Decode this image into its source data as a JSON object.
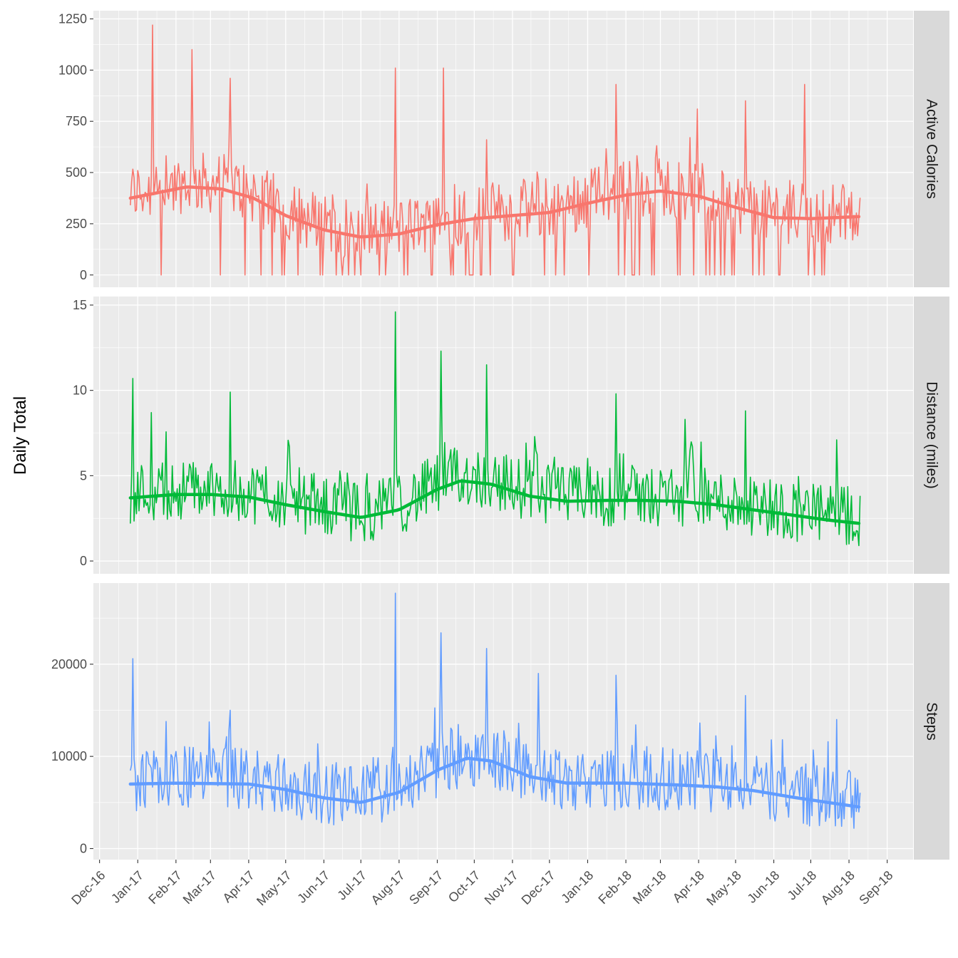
{
  "chart_data": {
    "type": "line",
    "ylabel": "Daily Total",
    "xlabel": "",
    "x_axis": {
      "type": "date",
      "range": [
        "2016-11-26",
        "2018-09-22"
      ],
      "ticks": [
        {
          "date": "2016-12-01",
          "label": "Dec-16"
        },
        {
          "date": "2017-01-01",
          "label": "Jan-17"
        },
        {
          "date": "2017-02-01",
          "label": "Feb-17"
        },
        {
          "date": "2017-03-01",
          "label": "Mar-17"
        },
        {
          "date": "2017-04-01",
          "label": "Apr-17"
        },
        {
          "date": "2017-05-01",
          "label": "May-17"
        },
        {
          "date": "2017-06-01",
          "label": "Jun-17"
        },
        {
          "date": "2017-07-01",
          "label": "Jul-17"
        },
        {
          "date": "2017-08-01",
          "label": "Aug-17"
        },
        {
          "date": "2017-09-01",
          "label": "Sep-17"
        },
        {
          "date": "2017-10-01",
          "label": "Oct-17"
        },
        {
          "date": "2017-11-01",
          "label": "Nov-17"
        },
        {
          "date": "2017-12-01",
          "label": "Dec-17"
        },
        {
          "date": "2018-01-01",
          "label": "Jan-18"
        },
        {
          "date": "2018-02-01",
          "label": "Feb-18"
        },
        {
          "date": "2018-03-01",
          "label": "Mar-18"
        },
        {
          "date": "2018-04-01",
          "label": "Apr-18"
        },
        {
          "date": "2018-05-01",
          "label": "May-18"
        },
        {
          "date": "2018-06-01",
          "label": "Jun-18"
        },
        {
          "date": "2018-07-01",
          "label": "Jul-18"
        },
        {
          "date": "2018-08-01",
          "label": "Aug-18"
        },
        {
          "date": "2018-09-01",
          "label": "Sep-18"
        }
      ]
    },
    "date_range_of_data": [
      "2016-12-26",
      "2018-08-10"
    ],
    "grid": true,
    "legend": "none",
    "facets": [
      {
        "name": "Active Calories",
        "color": "#F8766D",
        "ylim": [
          -60,
          1290
        ],
        "yticks": [
          {
            "v": 0,
            "label": "0"
          },
          {
            "v": 250,
            "label": "250"
          },
          {
            "v": 500,
            "label": "500"
          },
          {
            "v": 750,
            "label": "750"
          },
          {
            "v": 1000,
            "label": "1000"
          },
          {
            "v": 1250,
            "label": "1250"
          }
        ],
        "daily_approx": {
          "base": 380,
          "amplitude": 150,
          "zero_probability": 0.12,
          "peaks": [
            [
              "2017-01-13",
              1220
            ],
            [
              "2017-02-14",
              1100
            ],
            [
              "2017-03-17",
              960
            ],
            [
              "2017-07-29",
              1010
            ],
            [
              "2017-09-06",
              1010
            ],
            [
              "2017-10-11",
              660
            ],
            [
              "2018-01-24",
              930
            ],
            [
              "2018-03-31",
              810
            ],
            [
              "2018-05-09",
              850
            ],
            [
              "2018-06-26",
              930
            ]
          ]
        },
        "smooth": [
          [
            "2016-12-26",
            375
          ],
          [
            "2017-02-10",
            430
          ],
          [
            "2017-03-10",
            420
          ],
          [
            "2017-04-05",
            375
          ],
          [
            "2017-05-01",
            290
          ],
          [
            "2017-06-01",
            220
          ],
          [
            "2017-07-01",
            185
          ],
          [
            "2017-08-01",
            200
          ],
          [
            "2017-09-01",
            245
          ],
          [
            "2017-10-01",
            275
          ],
          [
            "2017-11-01",
            290
          ],
          [
            "2017-12-01",
            305
          ],
          [
            "2018-01-01",
            350
          ],
          [
            "2018-02-01",
            390
          ],
          [
            "2018-03-01",
            410
          ],
          [
            "2018-04-01",
            385
          ],
          [
            "2018-05-01",
            330
          ],
          [
            "2018-06-01",
            280
          ],
          [
            "2018-07-01",
            275
          ],
          [
            "2018-08-10",
            285
          ]
        ]
      },
      {
        "name": "Distance (miles)",
        "color": "#00BA38",
        "ylim": [
          -0.75,
          15.5
        ],
        "yticks": [
          {
            "v": 0,
            "label": "0"
          },
          {
            "v": 5,
            "label": "5"
          },
          {
            "v": 10,
            "label": "10"
          },
          {
            "v": 15,
            "label": "15"
          }
        ],
        "daily_approx": {
          "base": 3.6,
          "amplitude": 1.8,
          "zero_probability": 0,
          "peaks": [
            [
              "2016-12-28",
              10.7
            ],
            [
              "2017-01-12",
              8.7
            ],
            [
              "2017-03-17",
              9.9
            ],
            [
              "2017-07-29",
              14.6
            ],
            [
              "2017-09-04",
              12.3
            ],
            [
              "2017-10-11",
              11.5
            ],
            [
              "2018-01-24",
              9.8
            ],
            [
              "2018-03-21",
              8.3
            ],
            [
              "2018-05-09",
              8.8
            ],
            [
              "2018-07-22",
              7.1
            ]
          ]
        },
        "smooth": [
          [
            "2016-12-26",
            3.7
          ],
          [
            "2017-02-01",
            3.9
          ],
          [
            "2017-03-01",
            3.9
          ],
          [
            "2017-04-01",
            3.75
          ],
          [
            "2017-05-01",
            3.3
          ],
          [
            "2017-06-01",
            2.9
          ],
          [
            "2017-07-01",
            2.55
          ],
          [
            "2017-08-01",
            3.0
          ],
          [
            "2017-09-01",
            4.2
          ],
          [
            "2017-09-20",
            4.7
          ],
          [
            "2017-10-15",
            4.5
          ],
          [
            "2017-11-15",
            3.8
          ],
          [
            "2017-12-15",
            3.5
          ],
          [
            "2018-01-15",
            3.55
          ],
          [
            "2018-02-15",
            3.55
          ],
          [
            "2018-03-15",
            3.5
          ],
          [
            "2018-04-15",
            3.3
          ],
          [
            "2018-05-15",
            3.0
          ],
          [
            "2018-06-15",
            2.7
          ],
          [
            "2018-07-15",
            2.4
          ],
          [
            "2018-08-10",
            2.2
          ]
        ]
      },
      {
        "name": "Steps",
        "color": "#619CFF",
        "ylim": [
          -1200,
          28800
        ],
        "yticks": [
          {
            "v": 0,
            "label": "0"
          },
          {
            "v": 10000,
            "label": "10000"
          },
          {
            "v": 20000,
            "label": "20000"
          }
        ],
        "daily_approx": {
          "base": 6900,
          "amplitude": 3500,
          "zero_probability": 0,
          "peaks": [
            [
              "2016-12-28",
              20600
            ],
            [
              "2017-03-17",
              15000
            ],
            [
              "2017-07-29",
              27700
            ],
            [
              "2017-09-04",
              23400
            ],
            [
              "2017-10-11",
              21700
            ],
            [
              "2017-11-22",
              19000
            ],
            [
              "2018-01-24",
              18800
            ],
            [
              "2018-05-09",
              16600
            ],
            [
              "2018-07-22",
              14000
            ]
          ]
        },
        "smooth": [
          [
            "2016-12-26",
            7000
          ],
          [
            "2017-02-01",
            7100
          ],
          [
            "2017-04-01",
            7000
          ],
          [
            "2017-05-01",
            6400
          ],
          [
            "2017-06-01",
            5500
          ],
          [
            "2017-07-01",
            5000
          ],
          [
            "2017-08-01",
            6100
          ],
          [
            "2017-09-01",
            8500
          ],
          [
            "2017-09-25",
            9800
          ],
          [
            "2017-10-15",
            9500
          ],
          [
            "2017-11-15",
            7800
          ],
          [
            "2017-12-15",
            7100
          ],
          [
            "2018-02-01",
            7100
          ],
          [
            "2018-03-15",
            6900
          ],
          [
            "2018-04-15",
            6700
          ],
          [
            "2018-05-15",
            6300
          ],
          [
            "2018-06-15",
            5600
          ],
          [
            "2018-07-15",
            5000
          ],
          [
            "2018-08-10",
            4500
          ]
        ]
      }
    ]
  }
}
